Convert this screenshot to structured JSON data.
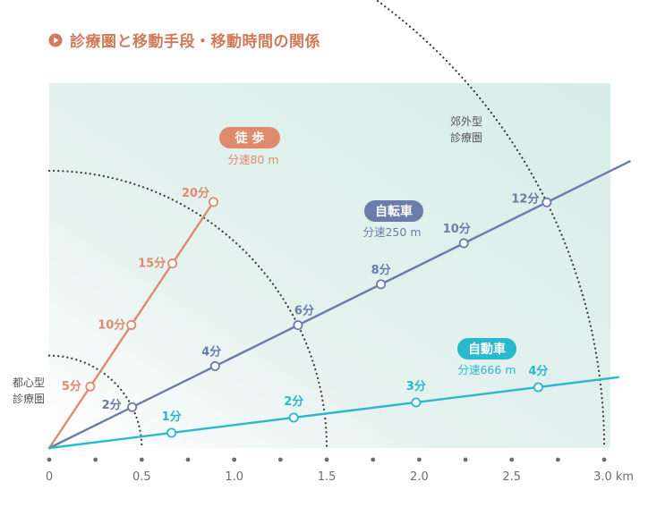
{
  "title": "診療圏と移動手段・移動時間の関係",
  "colors": {
    "title": "#d27a5c",
    "walk": "#e08a6c",
    "bike": "#6b7cab",
    "car": "#28b9cf",
    "axis": "#6d6d6d",
    "arc": "#3c3c3c",
    "bg_from": "#ffffff",
    "bg_to": "#d8ede9"
  },
  "chart_data": {
    "type": "line",
    "xlabel_unit": "km",
    "xlim": [
      0,
      3.0
    ],
    "x_ticks": [
      {
        "value": 0,
        "label": "0"
      },
      {
        "value": 0.25,
        "label": ""
      },
      {
        "value": 0.5,
        "label": "0.5"
      },
      {
        "value": 0.75,
        "label": ""
      },
      {
        "value": 1.0,
        "label": "1.0"
      },
      {
        "value": 1.25,
        "label": ""
      },
      {
        "value": 1.5,
        "label": "1.5"
      },
      {
        "value": 1.75,
        "label": ""
      },
      {
        "value": 2.0,
        "label": "2.0"
      },
      {
        "value": 2.25,
        "label": ""
      },
      {
        "value": 2.5,
        "label": "2.5"
      },
      {
        "value": 2.75,
        "label": ""
      },
      {
        "value": 3.0,
        "label": "3.0 km"
      }
    ],
    "arcs": [
      {
        "radius_km": 0.5,
        "label": [
          "都心型",
          "診療圏"
        ]
      },
      {
        "radius_km": 1.5,
        "label": []
      },
      {
        "radius_km": 3.0,
        "label": [
          "郊外型",
          "診療圏"
        ]
      }
    ],
    "series": [
      {
        "name": "徒 歩",
        "speed_label": "分速80 m",
        "color_key": "walk",
        "angle_deg": 56.3,
        "end_km": 1.6,
        "points": [
          {
            "minutes": 5,
            "distance_km": 0.4,
            "label": "5分"
          },
          {
            "minutes": 10,
            "distance_km": 0.8,
            "label": "10分"
          },
          {
            "minutes": 15,
            "distance_km": 1.2,
            "label": "15分"
          },
          {
            "minutes": 20,
            "distance_km": 1.6,
            "label": "20分"
          }
        ]
      },
      {
        "name": "自転車",
        "speed_label": "分速250 m",
        "color_key": "bike",
        "angle_deg": 26.3,
        "end_km": 3.5,
        "points": [
          {
            "minutes": 2,
            "distance_km": 0.5,
            "label": "2分"
          },
          {
            "minutes": 4,
            "distance_km": 1.0,
            "label": "4分"
          },
          {
            "minutes": 6,
            "distance_km": 1.5,
            "label": "6分"
          },
          {
            "minutes": 8,
            "distance_km": 2.0,
            "label": "8分"
          },
          {
            "minutes": 10,
            "distance_km": 2.5,
            "label": "10分"
          },
          {
            "minutes": 12,
            "distance_km": 3.0,
            "label": "12分"
          }
        ]
      },
      {
        "name": "自動車",
        "speed_label": "分速666 m",
        "color_key": "car",
        "angle_deg": 7.1,
        "end_km": 3.1,
        "points": [
          {
            "minutes": 1,
            "distance_km": 0.666,
            "label": "1分"
          },
          {
            "minutes": 2,
            "distance_km": 1.332,
            "label": "2分"
          },
          {
            "minutes": 3,
            "distance_km": 1.998,
            "label": "3分"
          },
          {
            "minutes": 4,
            "distance_km": 2.664,
            "label": "4分"
          }
        ]
      }
    ]
  }
}
